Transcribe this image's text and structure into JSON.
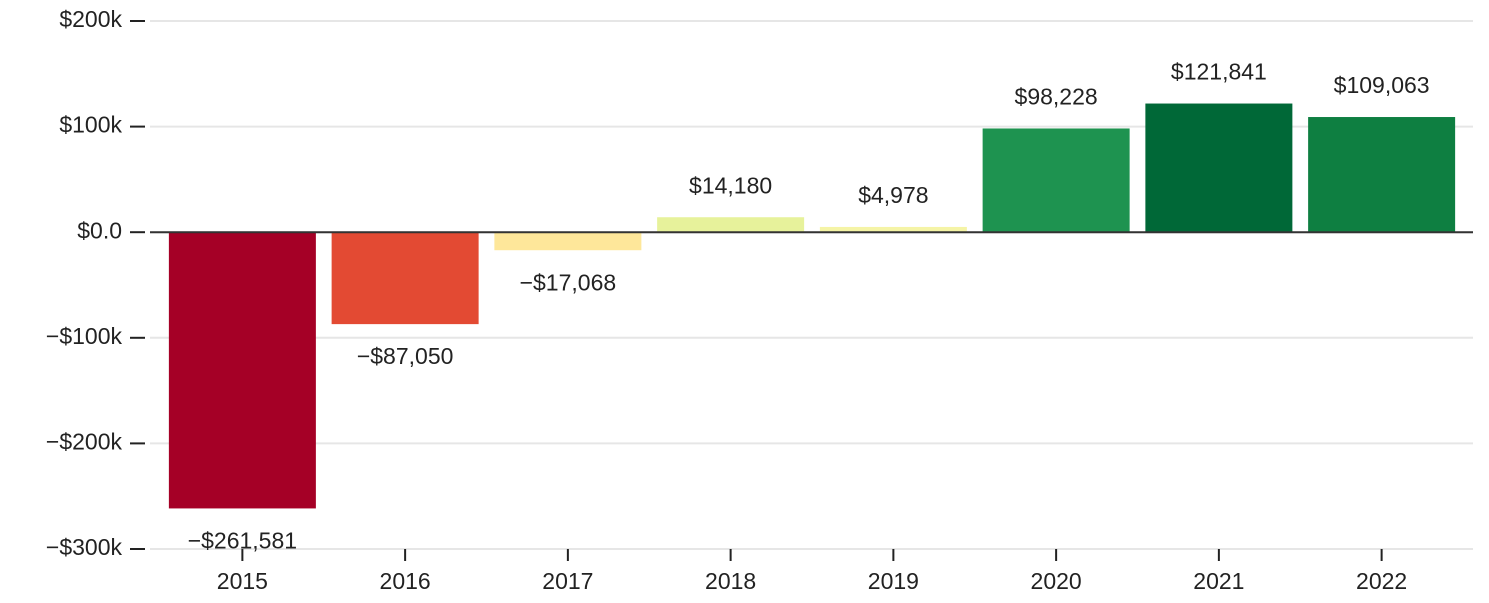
{
  "chart_data": {
    "type": "bar",
    "categories": [
      "2015",
      "2016",
      "2017",
      "2018",
      "2019",
      "2020",
      "2021",
      "2022"
    ],
    "values": [
      -261581,
      -87050,
      -17068,
      14180,
      4978,
      98228,
      121841,
      109063
    ],
    "value_labels": [
      "−$261,581",
      "−$87,050",
      "−$17,068",
      "$14,180",
      "$4,978",
      "$98,228",
      "$121,841",
      "$109,063"
    ],
    "colors": [
      "#a50026",
      "#e34a33",
      "#fee79a",
      "#e7f29b",
      "#f5f4a6",
      "#1e9350",
      "#006837",
      "#0e7f41"
    ],
    "ylim": [
      -300000,
      200000
    ],
    "yticks": [
      {
        "value": -300000,
        "label": "−$300k"
      },
      {
        "value": -200000,
        "label": "−$200k"
      },
      {
        "value": -100000,
        "label": "−$100k"
      },
      {
        "value": 0,
        "label": "$0.0"
      },
      {
        "value": 100000,
        "label": "$100k"
      },
      {
        "value": 200000,
        "label": "$200k"
      }
    ],
    "grid": true
  }
}
